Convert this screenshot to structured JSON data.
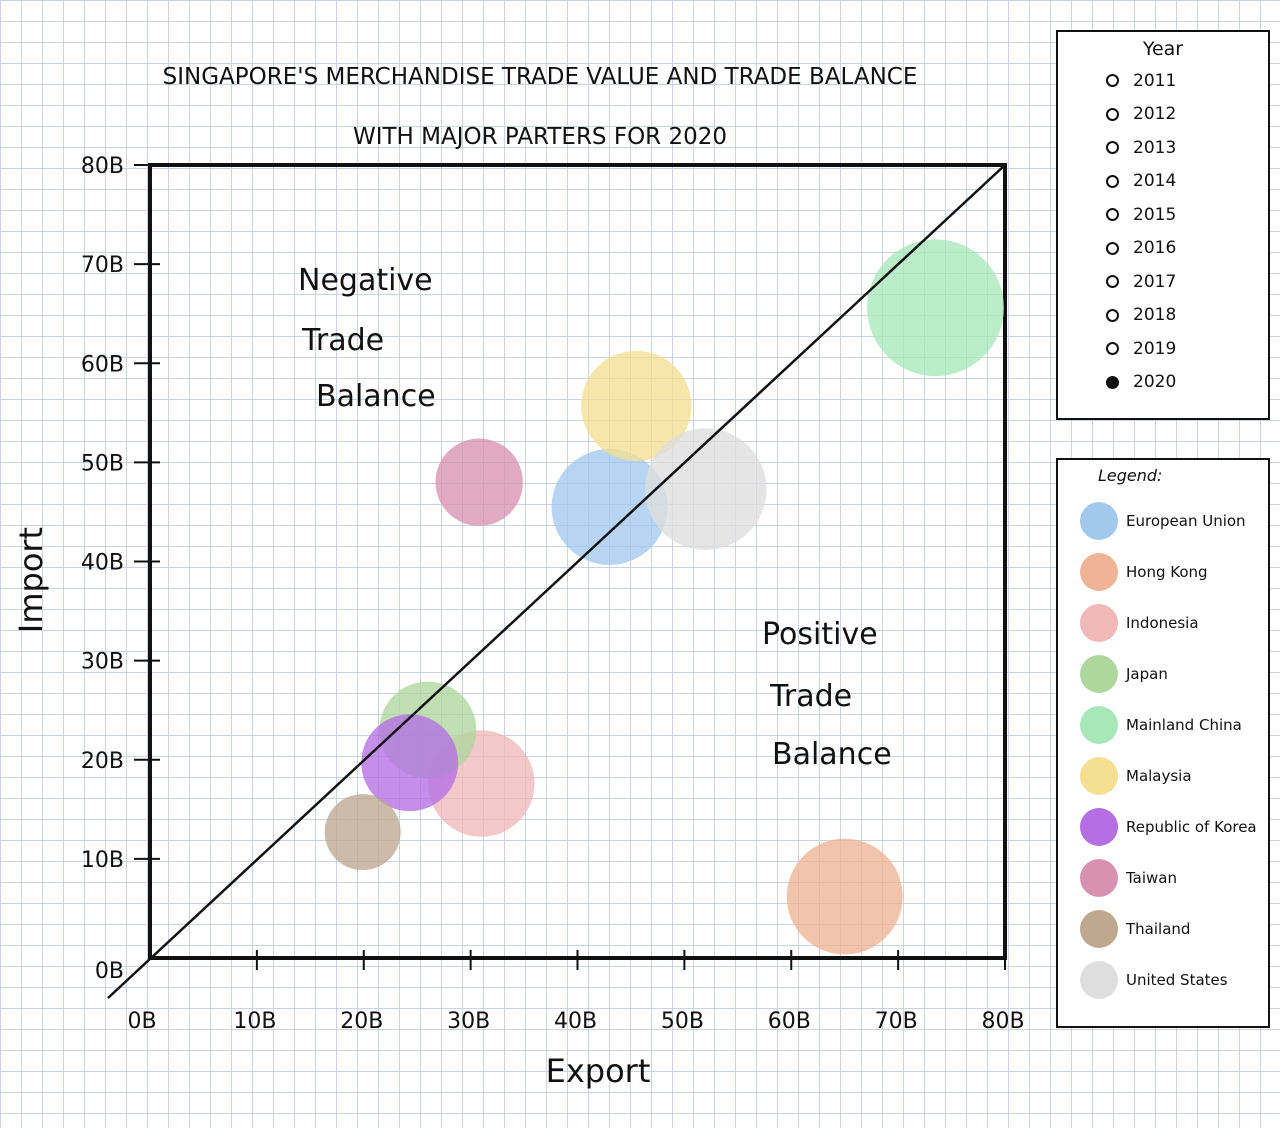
{
  "chart_data": {
    "type": "scatter",
    "title_line1": "SINGAPORE'S MERCHANDISE TRADE VALUE AND TRADE BALANCE",
    "title_line2": "WITH MAJOR PARTERS FOR 2020",
    "xlabel": "Export",
    "ylabel": "Import",
    "xlim": [
      0,
      80
    ],
    "ylim": [
      0,
      80
    ],
    "x_ticks": [
      "0B",
      "10B",
      "20B",
      "30B",
      "40B",
      "50B",
      "60B",
      "70B",
      "80B"
    ],
    "y_ticks": [
      "0B",
      "10B",
      "20B",
      "30B",
      "40B",
      "50B",
      "60B",
      "70B",
      "80B"
    ],
    "annotations": {
      "negative": [
        "Negative",
        "Trade",
        "Balance"
      ],
      "positive": [
        "Positive",
        "Trade",
        "Balance"
      ]
    },
    "diagonal_line": true,
    "series": [
      {
        "name": "European Union",
        "x": 43,
        "y": 45.5,
        "size": 61,
        "color": "#a3c8ee"
      },
      {
        "name": "Hong Kong",
        "x": 65,
        "y": 6.2,
        "size": 61,
        "color": "#f0b395"
      },
      {
        "name": "Indonesia",
        "x": 31,
        "y": 17.6,
        "size": 56,
        "color": "#f0b8b8"
      },
      {
        "name": "Japan",
        "x": 26,
        "y": 23,
        "size": 51,
        "color": "#aed79e"
      },
      {
        "name": "Mainland China",
        "x": 73.5,
        "y": 65.6,
        "size": 72,
        "color": "#a8e8b8"
      },
      {
        "name": "Malaysia",
        "x": 45.5,
        "y": 55.7,
        "size": 58,
        "color": "#f4df92"
      },
      {
        "name": "Republic of Korea",
        "x": 24.3,
        "y": 19.7,
        "size": 51,
        "color": "#b56ee4"
      },
      {
        "name": "Taiwan",
        "x": 30.8,
        "y": 48,
        "size": 46,
        "color": "#d892b1"
      },
      {
        "name": "Thailand",
        "x": 19.9,
        "y": 12.7,
        "size": 40,
        "color": "#bea88f"
      },
      {
        "name": "United States",
        "x": 52,
        "y": 47.3,
        "size": 64,
        "color": "#dedede"
      }
    ]
  },
  "year_panel": {
    "title": "Year",
    "years": [
      "2011",
      "2012",
      "2013",
      "2014",
      "2015",
      "2016",
      "2017",
      "2018",
      "2019",
      "2020"
    ],
    "selected": "2020"
  },
  "legend_panel": {
    "title": "Legend:",
    "items": [
      {
        "label": "European Union",
        "color": "#a3c8ee"
      },
      {
        "label": "Hong Kong",
        "color": "#f0b395"
      },
      {
        "label": "Indonesia",
        "color": "#f0b8b8"
      },
      {
        "label": "Japan",
        "color": "#aed79e"
      },
      {
        "label": "Mainland China",
        "color": "#a8e8b8"
      },
      {
        "label": "Malaysia",
        "color": "#f4df92"
      },
      {
        "label": "Republic of Korea",
        "color": "#b56ee4"
      },
      {
        "label": "Taiwan",
        "color": "#d892b1"
      },
      {
        "label": "Thailand",
        "color": "#bea88f"
      },
      {
        "label": "United States",
        "color": "#dedede"
      }
    ]
  }
}
